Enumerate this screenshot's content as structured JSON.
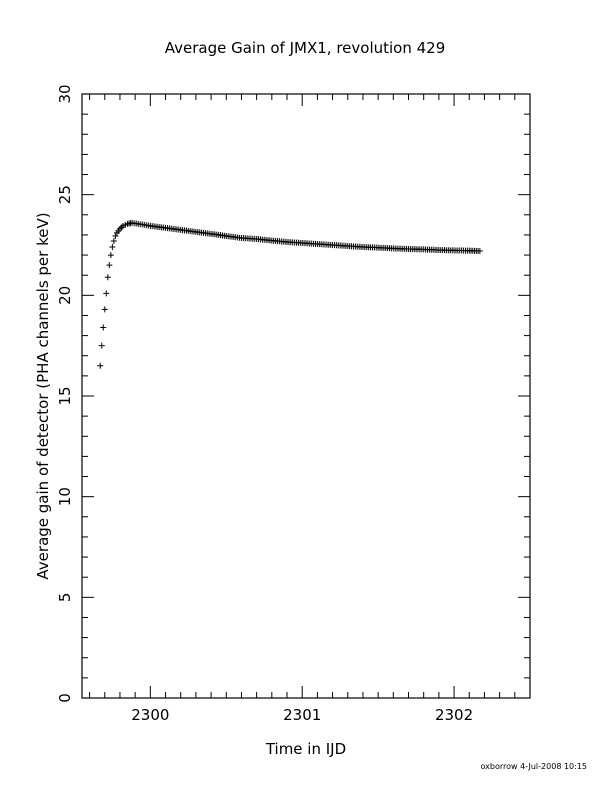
{
  "chart_data": {
    "type": "scatter",
    "title": "Average Gain of JMX1, revolution 429",
    "xlabel": "Time in IJD",
    "ylabel": "Average gain of detector (PHA channels per keV)",
    "xlim": [
      2299.55,
      2302.5
    ],
    "ylim": [
      0,
      30
    ],
    "xticks": [
      "2300",
      "2301",
      "2302"
    ],
    "yticks": [
      "0",
      "5",
      "10",
      "15",
      "20",
      "25",
      "30"
    ],
    "marker": "plus",
    "grid": false,
    "legend": "none",
    "series": [
      {
        "x": [
          2299.67,
          2299.68,
          2299.69,
          2299.7,
          2299.71,
          2299.72,
          2299.73,
          2299.74,
          2299.75,
          2299.76,
          2299.77,
          2299.78,
          2299.8,
          2299.82,
          2299.85,
          2299.88,
          2299.92,
          2299.96,
          2300.0,
          2300.1,
          2300.2,
          2300.3,
          2300.4,
          2300.5,
          2300.6,
          2300.7,
          2300.8,
          2300.9,
          2301.0,
          2301.1,
          2301.2,
          2301.3,
          2301.4,
          2301.5,
          2301.6,
          2301.7,
          2301.8,
          2301.9,
          2302.0,
          2302.1,
          2302.17
        ],
        "y": [
          16.5,
          17.5,
          18.4,
          19.3,
          20.1,
          20.9,
          21.5,
          22.0,
          22.4,
          22.7,
          22.95,
          23.1,
          23.3,
          23.45,
          23.55,
          23.6,
          23.55,
          23.5,
          23.45,
          23.35,
          23.25,
          23.15,
          23.05,
          22.95,
          22.85,
          22.8,
          22.72,
          22.65,
          22.6,
          22.55,
          22.5,
          22.45,
          22.4,
          22.37,
          22.33,
          22.3,
          22.28,
          22.25,
          22.23,
          22.22,
          22.2
        ]
      }
    ]
  },
  "footer": "oxborrow  4-Jul-2008 10:15"
}
